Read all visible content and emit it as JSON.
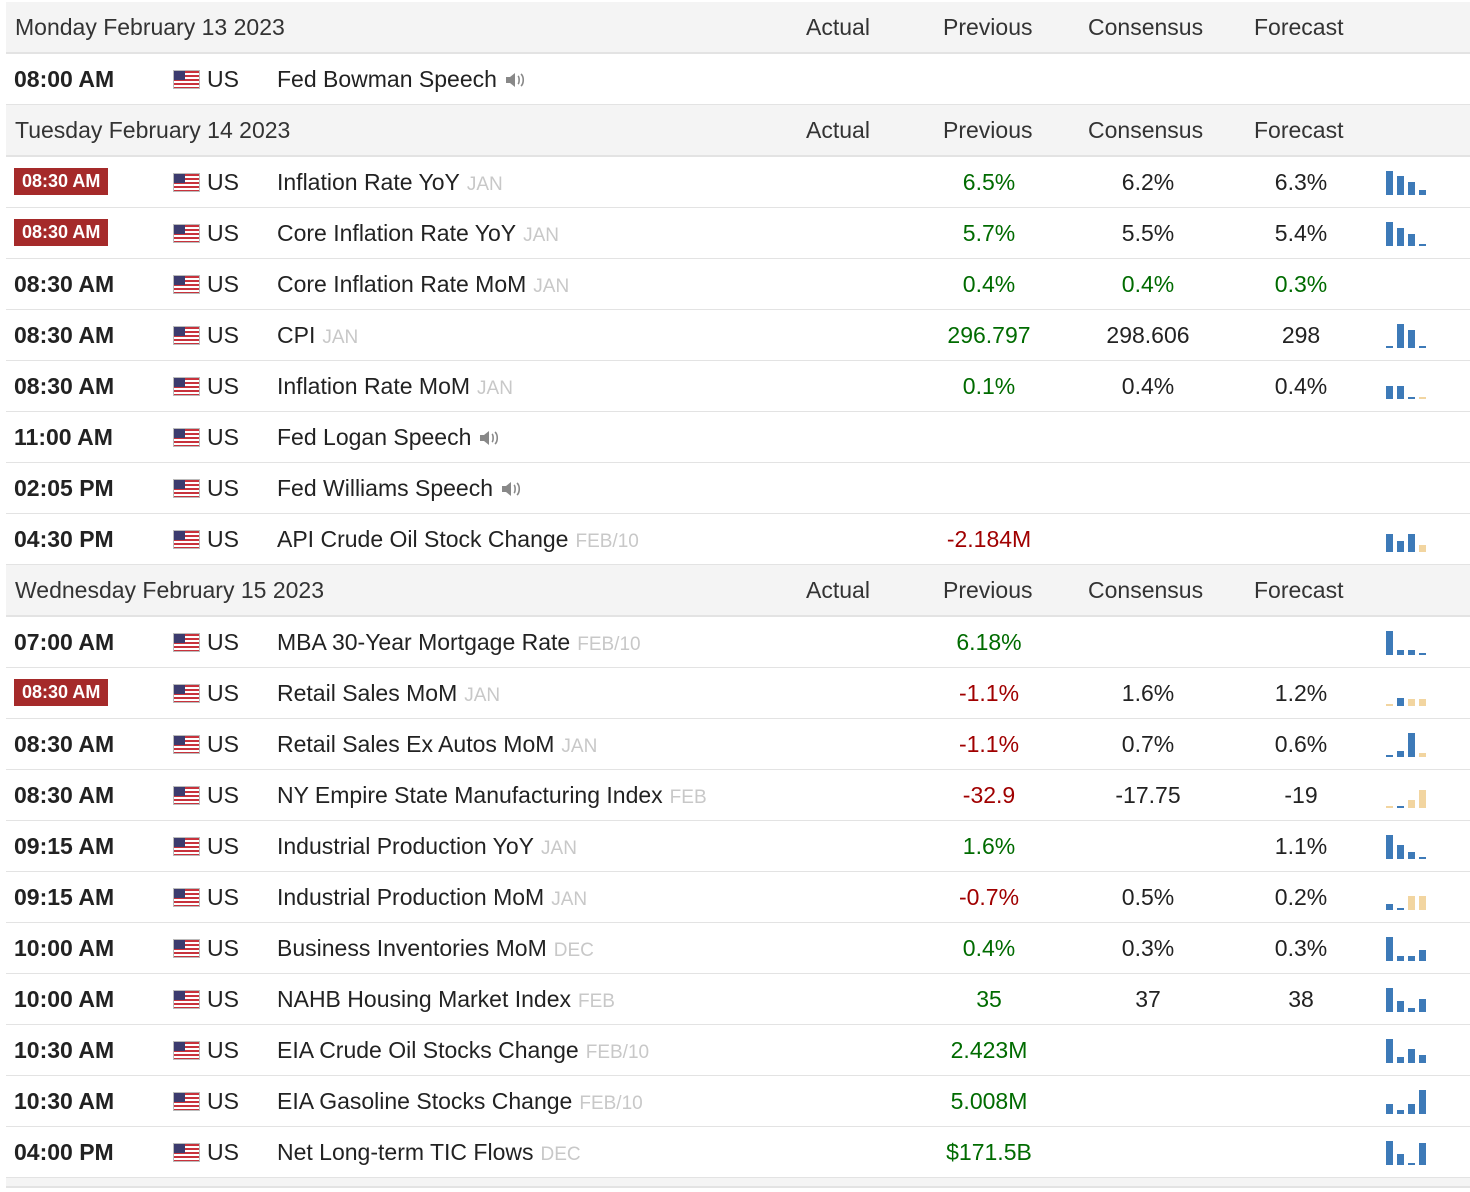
{
  "columns": {
    "actual": "Actual",
    "previous": "Previous",
    "consensus": "Consensus",
    "forecast": "Forecast"
  },
  "days": [
    {
      "date": "Monday February 13 2023",
      "events": [
        {
          "time": "08:00 AM",
          "important": false,
          "country": "US",
          "name": "Fed Bowman Speech",
          "ref": "",
          "speech": true,
          "actual": "",
          "previous": "",
          "previous_color": "",
          "consensus": "",
          "consensus_color": "",
          "forecast": "",
          "forecast_color": "",
          "chart": []
        }
      ]
    },
    {
      "date": "Tuesday February 14 2023",
      "events": [
        {
          "time": "08:30 AM",
          "important": true,
          "country": "US",
          "name": "Inflation Rate YoY",
          "ref": "JAN",
          "speech": false,
          "actual": "",
          "previous": "6.5%",
          "previous_color": "pos",
          "consensus": "6.2%",
          "consensus_color": "neu",
          "forecast": "6.3%",
          "forecast_color": "neu",
          "chart": [
            {
              "v": 1.0,
              "c": "blue"
            },
            {
              "v": 0.8,
              "c": "blue"
            },
            {
              "v": 0.55,
              "c": "blue"
            },
            {
              "v": 0.2,
              "c": "blue"
            }
          ]
        },
        {
          "time": "08:30 AM",
          "important": true,
          "country": "US",
          "name": "Core Inflation Rate YoY",
          "ref": "JAN",
          "speech": false,
          "actual": "",
          "previous": "5.7%",
          "previous_color": "pos",
          "consensus": "5.5%",
          "consensus_color": "neu",
          "forecast": "5.4%",
          "forecast_color": "neu",
          "chart": [
            {
              "v": 1.0,
              "c": "blue"
            },
            {
              "v": 0.75,
              "c": "blue"
            },
            {
              "v": 0.5,
              "c": "blue"
            },
            {
              "v": 0.1,
              "c": "blue"
            }
          ]
        },
        {
          "time": "08:30 AM",
          "important": false,
          "country": "US",
          "name": "Core Inflation Rate MoM",
          "ref": "JAN",
          "speech": false,
          "actual": "",
          "previous": "0.4%",
          "previous_color": "pos",
          "consensus": "0.4%",
          "consensus_color": "pos",
          "forecast": "0.3%",
          "forecast_color": "pos",
          "chart": []
        },
        {
          "time": "08:30 AM",
          "important": false,
          "country": "US",
          "name": "CPI",
          "ref": "JAN",
          "speech": false,
          "actual": "",
          "previous": "296.797",
          "previous_color": "pos",
          "consensus": "298.606",
          "consensus_color": "neu",
          "forecast": "298",
          "forecast_color": "neu",
          "chart": [
            {
              "v": 0.1,
              "c": "blue"
            },
            {
              "v": 1.0,
              "c": "blue"
            },
            {
              "v": 0.75,
              "c": "blue"
            },
            {
              "v": 0.1,
              "c": "blue"
            }
          ]
        },
        {
          "time": "08:30 AM",
          "important": false,
          "country": "US",
          "name": "Inflation Rate MoM",
          "ref": "JAN",
          "speech": false,
          "actual": "",
          "previous": "0.1%",
          "previous_color": "pos",
          "consensus": "0.4%",
          "consensus_color": "neu",
          "forecast": "0.4%",
          "forecast_color": "neu",
          "chart": [
            {
              "v": 0.55,
              "c": "blue"
            },
            {
              "v": 0.55,
              "c": "blue"
            },
            {
              "v": 0.1,
              "c": "blue"
            },
            {
              "v": 0.1,
              "c": "tan"
            }
          ]
        },
        {
          "time": "11:00 AM",
          "important": false,
          "country": "US",
          "name": "Fed Logan Speech",
          "ref": "",
          "speech": true,
          "actual": "",
          "previous": "",
          "previous_color": "",
          "consensus": "",
          "consensus_color": "",
          "forecast": "",
          "forecast_color": "",
          "chart": []
        },
        {
          "time": "02:05 PM",
          "important": false,
          "country": "US",
          "name": "Fed Williams Speech",
          "ref": "",
          "speech": true,
          "actual": "",
          "previous": "",
          "previous_color": "",
          "consensus": "",
          "consensus_color": "",
          "forecast": "",
          "forecast_color": "",
          "chart": []
        },
        {
          "time": "04:30 PM",
          "important": false,
          "country": "US",
          "name": "API Crude Oil Stock Change",
          "ref": "FEB/10",
          "speech": false,
          "actual": "",
          "previous": "-2.184M",
          "previous_color": "neg",
          "consensus": "",
          "consensus_color": "",
          "forecast": "",
          "forecast_color": "",
          "chart": [
            {
              "v": 0.75,
              "c": "blue"
            },
            {
              "v": 0.45,
              "c": "blue"
            },
            {
              "v": 0.75,
              "c": "blue"
            },
            {
              "v": 0.3,
              "c": "tan"
            }
          ]
        }
      ]
    },
    {
      "date": "Wednesday February 15 2023",
      "events": [
        {
          "time": "07:00 AM",
          "important": false,
          "country": "US",
          "name": "MBA 30-Year Mortgage Rate",
          "ref": "FEB/10",
          "speech": false,
          "actual": "",
          "previous": "6.18%",
          "previous_color": "pos",
          "consensus": "",
          "consensus_color": "",
          "forecast": "",
          "forecast_color": "",
          "chart": [
            {
              "v": 1.0,
              "c": "blue"
            },
            {
              "v": 0.2,
              "c": "blue"
            },
            {
              "v": 0.2,
              "c": "blue"
            },
            {
              "v": 0.1,
              "c": "blue"
            }
          ]
        },
        {
          "time": "08:30 AM",
          "important": true,
          "country": "US",
          "name": "Retail Sales MoM",
          "ref": "JAN",
          "speech": false,
          "actual": "",
          "previous": "-1.1%",
          "previous_color": "neg",
          "consensus": "1.6%",
          "consensus_color": "neu",
          "forecast": "1.2%",
          "forecast_color": "neu",
          "chart": [
            {
              "v": 0.05,
              "c": "tan"
            },
            {
              "v": 0.35,
              "c": "blue"
            },
            {
              "v": 0.3,
              "c": "tan"
            },
            {
              "v": 0.3,
              "c": "tan"
            }
          ]
        },
        {
          "time": "08:30 AM",
          "important": false,
          "country": "US",
          "name": "Retail Sales Ex Autos MoM",
          "ref": "JAN",
          "speech": false,
          "actual": "",
          "previous": "-1.1%",
          "previous_color": "neg",
          "consensus": "0.7%",
          "consensus_color": "neu",
          "forecast": "0.6%",
          "forecast_color": "neu",
          "chart": [
            {
              "v": 0.1,
              "c": "blue"
            },
            {
              "v": 0.25,
              "c": "blue"
            },
            {
              "v": 1.0,
              "c": "blue"
            },
            {
              "v": 0.15,
              "c": "tan"
            }
          ]
        },
        {
          "time": "08:30 AM",
          "important": false,
          "country": "US",
          "name": "NY Empire State Manufacturing Index",
          "ref": "FEB",
          "speech": false,
          "actual": "",
          "previous": "-32.9",
          "previous_color": "neg",
          "consensus": "-17.75",
          "consensus_color": "neu",
          "forecast": "-19",
          "forecast_color": "neu",
          "chart": [
            {
              "v": 0.1,
              "c": "tan"
            },
            {
              "v": 0.1,
              "c": "blue"
            },
            {
              "v": 0.35,
              "c": "tan"
            },
            {
              "v": 0.75,
              "c": "tan"
            }
          ]
        },
        {
          "time": "09:15 AM",
          "important": false,
          "country": "US",
          "name": "Industrial Production YoY",
          "ref": "JAN",
          "speech": false,
          "actual": "",
          "previous": "1.6%",
          "previous_color": "pos",
          "consensus": "",
          "consensus_color": "",
          "forecast": "1.1%",
          "forecast_color": "neu",
          "chart": [
            {
              "v": 1.0,
              "c": "blue"
            },
            {
              "v": 0.6,
              "c": "blue"
            },
            {
              "v": 0.3,
              "c": "blue"
            },
            {
              "v": 0.1,
              "c": "blue"
            }
          ]
        },
        {
          "time": "09:15 AM",
          "important": false,
          "country": "US",
          "name": "Industrial Production MoM",
          "ref": "JAN",
          "speech": false,
          "actual": "",
          "previous": "-0.7%",
          "previous_color": "neg",
          "consensus": "0.5%",
          "consensus_color": "neu",
          "forecast": "0.2%",
          "forecast_color": "neu",
          "chart": [
            {
              "v": 0.25,
              "c": "blue"
            },
            {
              "v": 0.0,
              "c": "blue"
            },
            {
              "v": 0.6,
              "c": "tan"
            },
            {
              "v": 0.6,
              "c": "tan"
            }
          ]
        },
        {
          "time": "10:00 AM",
          "important": false,
          "country": "US",
          "name": "Business Inventories MoM",
          "ref": "DEC",
          "speech": false,
          "actual": "",
          "previous": "0.4%",
          "previous_color": "pos",
          "consensus": "0.3%",
          "consensus_color": "neu",
          "forecast": "0.3%",
          "forecast_color": "neu",
          "chart": [
            {
              "v": 1.0,
              "c": "blue"
            },
            {
              "v": 0.2,
              "c": "blue"
            },
            {
              "v": 0.2,
              "c": "blue"
            },
            {
              "v": 0.45,
              "c": "blue"
            }
          ]
        },
        {
          "time": "10:00 AM",
          "important": false,
          "country": "US",
          "name": "NAHB Housing Market Index",
          "ref": "FEB",
          "speech": false,
          "actual": "",
          "previous": "35",
          "previous_color": "pos",
          "consensus": "37",
          "consensus_color": "neu",
          "forecast": "38",
          "forecast_color": "neu",
          "chart": [
            {
              "v": 1.0,
              "c": "blue"
            },
            {
              "v": 0.45,
              "c": "blue"
            },
            {
              "v": 0.15,
              "c": "blue"
            },
            {
              "v": 0.55,
              "c": "blue"
            }
          ]
        },
        {
          "time": "10:30 AM",
          "important": false,
          "country": "US",
          "name": "EIA Crude Oil Stocks Change",
          "ref": "FEB/10",
          "speech": false,
          "actual": "",
          "previous": "2.423M",
          "previous_color": "pos",
          "consensus": "",
          "consensus_color": "",
          "forecast": "",
          "forecast_color": "",
          "chart": [
            {
              "v": 1.0,
              "c": "blue"
            },
            {
              "v": 0.25,
              "c": "blue"
            },
            {
              "v": 0.6,
              "c": "blue"
            },
            {
              "v": 0.35,
              "c": "blue"
            }
          ]
        },
        {
          "time": "10:30 AM",
          "important": false,
          "country": "US",
          "name": "EIA Gasoline Stocks Change",
          "ref": "FEB/10",
          "speech": false,
          "actual": "",
          "previous": "5.008M",
          "previous_color": "pos",
          "consensus": "",
          "consensus_color": "",
          "forecast": "",
          "forecast_color": "",
          "chart": [
            {
              "v": 0.4,
              "c": "blue"
            },
            {
              "v": 0.15,
              "c": "blue"
            },
            {
              "v": 0.4,
              "c": "blue"
            },
            {
              "v": 1.0,
              "c": "blue"
            }
          ]
        },
        {
          "time": "04:00 PM",
          "important": false,
          "country": "US",
          "name": "Net Long-term TIC Flows",
          "ref": "DEC",
          "speech": false,
          "actual": "",
          "previous": "$171.5B",
          "previous_color": "pos",
          "consensus": "",
          "consensus_color": "",
          "forecast": "",
          "forecast_color": "",
          "chart": [
            {
              "v": 1.0,
              "c": "blue"
            },
            {
              "v": 0.45,
              "c": "blue"
            },
            {
              "v": 0.1,
              "c": "blue"
            },
            {
              "v": 0.9,
              "c": "blue"
            }
          ]
        }
      ]
    }
  ]
}
